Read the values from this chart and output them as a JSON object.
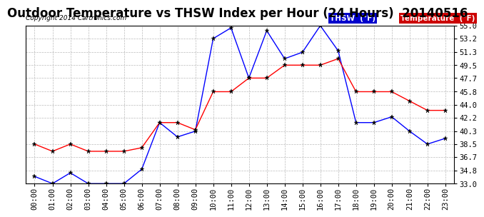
{
  "title": "Outdoor Temperature vs THSW Index per Hour (24 Hours)  20140516",
  "copyright": "Copyright 2014 Cartronics.com",
  "hours": [
    "00:00",
    "01:00",
    "02:00",
    "03:00",
    "04:00",
    "05:00",
    "06:00",
    "07:00",
    "08:00",
    "09:00",
    "10:00",
    "11:00",
    "12:00",
    "13:00",
    "14:00",
    "15:00",
    "16:00",
    "17:00",
    "18:00",
    "19:00",
    "20:00",
    "21:00",
    "22:00",
    "23:00"
  ],
  "thsw": [
    34.0,
    33.0,
    34.5,
    33.0,
    33.0,
    33.0,
    35.0,
    41.5,
    39.5,
    40.3,
    53.2,
    54.7,
    47.7,
    54.3,
    50.4,
    51.3,
    55.0,
    51.5,
    41.5,
    41.5,
    42.3,
    40.3,
    38.5,
    39.3
  ],
  "temperature": [
    38.5,
    37.5,
    38.5,
    37.5,
    37.5,
    37.5,
    38.0,
    41.5,
    41.5,
    40.5,
    45.8,
    45.8,
    47.7,
    47.7,
    49.5,
    49.5,
    49.5,
    50.4,
    45.8,
    45.8,
    45.8,
    44.5,
    43.2,
    43.2
  ],
  "thsw_color": "#0000ff",
  "temp_color": "#ff0000",
  "bg_color": "#ffffff",
  "grid_color": "#bbbbbb",
  "ylim": [
    33.0,
    55.0
  ],
  "yticks": [
    33.0,
    34.8,
    36.7,
    38.5,
    40.3,
    42.2,
    44.0,
    45.8,
    47.7,
    49.5,
    51.3,
    53.2,
    55.0
  ],
  "title_fontsize": 12,
  "tick_fontsize": 7.5,
  "legend_thsw_bg": "#0000cc",
  "legend_temp_bg": "#cc0000",
  "marker_color": "#000000"
}
